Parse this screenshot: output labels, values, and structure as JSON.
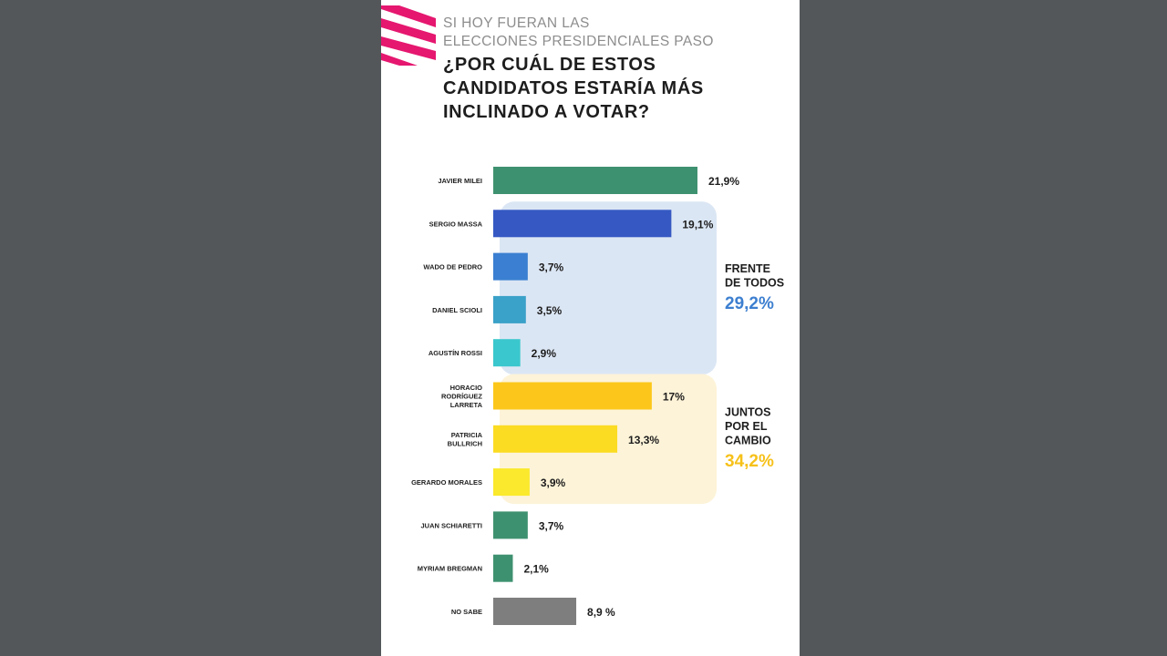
{
  "header": {
    "subtitle_line1": "SI HOY FUERAN LAS",
    "subtitle_line2": "ELECCIONES PRESIDENCIALES PASO",
    "title_line1": "¿POR CUÁL DE ESTOS",
    "title_line2": "CANDIDATOS ESTARÍA MÁS",
    "title_line3": "INCLINADO A VOTAR?"
  },
  "colors": {
    "background": "#53575a",
    "card": "#ffffff",
    "logo": "#e5176f",
    "frente_panel": "#dbe6f4",
    "juntos_panel": "#fdf3d8",
    "frente_total": "#3d7fd0",
    "juntos_total": "#f6c11a"
  },
  "chart_data": {
    "type": "bar",
    "orientation": "horizontal",
    "categories": [
      "JAVIER MILEI",
      "SERGIO MASSA",
      "WADO DE PEDRO",
      "DANIEL SCIOLI",
      "AGUSTÍN ROSSI",
      "HORACIO RODRÍGUEZ LARRETA",
      "PATRICIA BULLRICH",
      "GERARDO MORALES",
      "JUAN SCHIARETTI",
      "MYRIAM BREGMAN",
      "NO SABE"
    ],
    "values": [
      21.9,
      19.1,
      3.7,
      3.5,
      2.9,
      17,
      13.3,
      3.9,
      3.7,
      2.1,
      8.9
    ],
    "value_labels": [
      "21,9%",
      "19,1%",
      "3,7%",
      "3,5%",
      "2,9%",
      "17%",
      "13,3%",
      "3,9%",
      "3,7%",
      "2,1%",
      "8,9 %"
    ],
    "bar_colors": [
      "#3e9170",
      "#3558c3",
      "#3a7fd1",
      "#3aa1c8",
      "#3ac7cd",
      "#fcc71a",
      "#fbdc22",
      "#fae92c",
      "#3e9170",
      "#3e9170",
      "#7e7e7e"
    ],
    "xlim": [
      0,
      21.9
    ],
    "groups": [
      {
        "label_lines": [
          "FRENTE",
          "DE TODOS"
        ],
        "total": "29,2%",
        "first": 1,
        "last": 4
      },
      {
        "label_lines": [
          "JUNTOS",
          "POR EL",
          "CAMBIO"
        ],
        "total": "34,2%",
        "first": 5,
        "last": 7
      }
    ]
  }
}
